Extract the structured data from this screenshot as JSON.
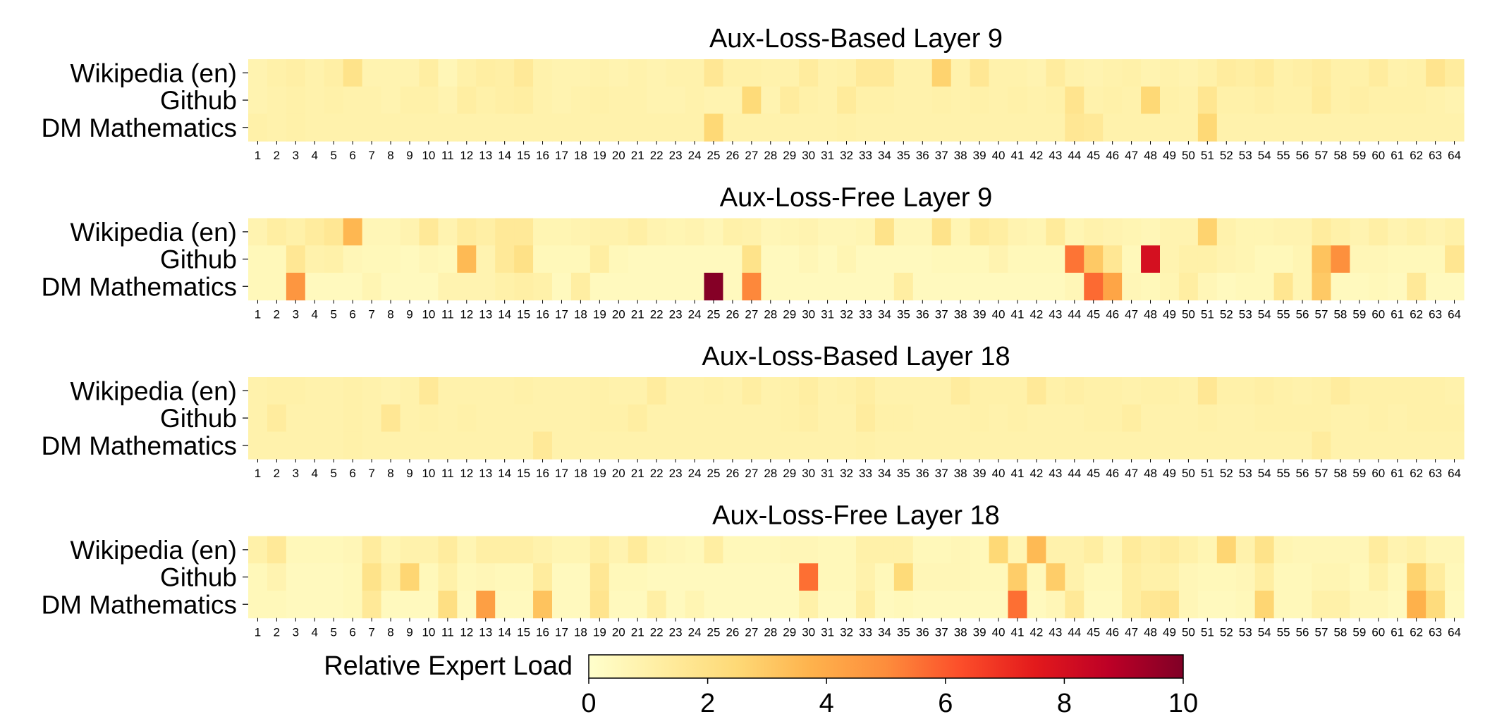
{
  "chart_data": [
    {
      "type": "heatmap",
      "title": "Aux-Loss-Based Layer 9",
      "rows": [
        "Wikipedia (en)",
        "Github",
        "DM Mathematics"
      ],
      "columns": [
        "1",
        "2",
        "3",
        "4",
        "5",
        "6",
        "7",
        "8",
        "9",
        "10",
        "11",
        "12",
        "13",
        "14",
        "15",
        "16",
        "17",
        "18",
        "19",
        "20",
        "21",
        "22",
        "23",
        "24",
        "25",
        "26",
        "27",
        "28",
        "29",
        "30",
        "31",
        "32",
        "33",
        "34",
        "35",
        "36",
        "37",
        "38",
        "39",
        "40",
        "41",
        "42",
        "43",
        "44",
        "45",
        "46",
        "47",
        "48",
        "49",
        "50",
        "51",
        "52",
        "53",
        "54",
        "55",
        "56",
        "57",
        "58",
        "59",
        "60",
        "61",
        "62",
        "63",
        "64"
      ],
      "values": [
        [
          0.8,
          1.0,
          1.1,
          0.9,
          1.1,
          1.9,
          0.8,
          0.8,
          0.8,
          1.2,
          0.6,
          1.0,
          1.2,
          1.1,
          1.5,
          0.9,
          0.8,
          0.8,
          0.9,
          0.8,
          0.9,
          0.8,
          0.9,
          0.9,
          1.6,
          1.0,
          1.0,
          0.9,
          0.9,
          1.3,
          0.9,
          1.0,
          1.5,
          1.5,
          0.9,
          0.9,
          2.7,
          0.9,
          1.6,
          0.9,
          0.9,
          0.8,
          1.3,
          0.9,
          0.8,
          0.9,
          1.0,
          0.8,
          0.9,
          0.8,
          1.0,
          1.3,
          1.2,
          1.4,
          1.0,
          1.1,
          1.3,
          1.0,
          1.0,
          1.3,
          0.9,
          1.0,
          1.8,
          1.3
        ],
        [
          0.8,
          0.9,
          1.0,
          0.9,
          1.0,
          0.9,
          0.9,
          0.8,
          1.0,
          1.0,
          0.8,
          1.2,
          1.0,
          1.1,
          1.2,
          0.9,
          0.8,
          0.9,
          1.0,
          0.9,
          0.9,
          0.8,
          0.8,
          0.9,
          0.8,
          0.8,
          2.4,
          0.8,
          1.3,
          1.0,
          0.9,
          1.4,
          1.0,
          1.0,
          0.9,
          0.9,
          1.0,
          0.9,
          1.0,
          0.9,
          1.0,
          0.9,
          1.0,
          1.8,
          0.9,
          1.0,
          0.9,
          2.5,
          1.0,
          0.9,
          1.7,
          1.0,
          1.0,
          1.1,
          1.0,
          1.0,
          1.4,
          1.0,
          1.1,
          1.0,
          1.0,
          1.0,
          0.9,
          0.8
        ],
        [
          1.0,
          0.9,
          1.0,
          0.9,
          0.9,
          0.9,
          0.9,
          0.9,
          0.9,
          0.9,
          0.9,
          0.9,
          0.9,
          0.9,
          0.9,
          0.9,
          0.9,
          0.9,
          0.9,
          0.9,
          0.9,
          0.9,
          0.9,
          0.9,
          2.5,
          0.9,
          0.9,
          0.9,
          0.9,
          0.9,
          0.9,
          1.0,
          0.9,
          0.9,
          0.9,
          0.9,
          0.9,
          0.9,
          0.9,
          0.9,
          0.9,
          0.9,
          0.9,
          1.6,
          1.5,
          0.9,
          0.9,
          0.9,
          0.9,
          0.9,
          2.5,
          0.9,
          0.9,
          0.9,
          0.9,
          0.9,
          0.9,
          0.9,
          0.9,
          0.9,
          0.9,
          0.9,
          0.9,
          0.9
        ]
      ],
      "colorbar": {
        "label": "Relative Expert Load",
        "range": [
          0,
          10
        ],
        "ticks": [
          "0",
          "2",
          "4",
          "6",
          "8",
          "10"
        ]
      }
    },
    {
      "type": "heatmap",
      "title": "Aux-Loss-Free Layer 9",
      "rows": [
        "Wikipedia (en)",
        "Github",
        "DM Mathematics"
      ],
      "columns": [
        "1",
        "2",
        "3",
        "4",
        "5",
        "6",
        "7",
        "8",
        "9",
        "10",
        "11",
        "12",
        "13",
        "14",
        "15",
        "16",
        "17",
        "18",
        "19",
        "20",
        "21",
        "22",
        "23",
        "24",
        "25",
        "26",
        "27",
        "28",
        "29",
        "30",
        "31",
        "32",
        "33",
        "34",
        "35",
        "36",
        "37",
        "38",
        "39",
        "40",
        "41",
        "42",
        "43",
        "44",
        "45",
        "46",
        "47",
        "48",
        "49",
        "50",
        "51",
        "52",
        "53",
        "54",
        "55",
        "56",
        "57",
        "58",
        "59",
        "60",
        "61",
        "62",
        "63",
        "64"
      ],
      "values": [
        [
          0.8,
          1.2,
          1.0,
          1.3,
          1.6,
          3.6,
          0.6,
          0.6,
          0.8,
          1.5,
          0.8,
          1.3,
          1.1,
          1.5,
          1.5,
          0.7,
          0.7,
          0.8,
          0.9,
          0.9,
          1.1,
          0.8,
          0.7,
          0.8,
          0.6,
          1.0,
          0.9,
          0.6,
          0.7,
          0.8,
          0.6,
          0.6,
          0.7,
          1.9,
          0.6,
          0.6,
          1.9,
          0.7,
          1.4,
          1.2,
          0.8,
          0.7,
          1.4,
          0.7,
          0.9,
          0.8,
          0.7,
          0.6,
          0.8,
          0.8,
          2.7,
          0.9,
          0.7,
          0.7,
          0.8,
          0.8,
          1.3,
          1.0,
          0.8,
          1.1,
          0.8,
          1.0,
          0.8,
          1.0
        ],
        [
          0.5,
          0.5,
          1.6,
          0.9,
          1.0,
          0.6,
          0.5,
          0.5,
          0.4,
          0.6,
          0.5,
          3.5,
          0.8,
          1.5,
          2.0,
          0.5,
          0.5,
          0.5,
          1.2,
          0.5,
          0.4,
          0.4,
          0.4,
          0.4,
          0.4,
          0.4,
          1.9,
          0.4,
          0.4,
          0.6,
          0.4,
          0.7,
          0.4,
          0.4,
          0.4,
          0.4,
          0.5,
          0.5,
          0.5,
          0.8,
          0.5,
          0.5,
          0.5,
          5.5,
          3.0,
          1.6,
          0.5,
          8.0,
          0.8,
          1.0,
          1.0,
          0.8,
          0.7,
          0.5,
          0.5,
          0.7,
          3.2,
          4.9,
          0.6,
          0.6,
          0.5,
          0.5,
          0.5,
          1.7
        ],
        [
          0.5,
          0.5,
          4.7,
          0.4,
          0.4,
          0.4,
          0.7,
          0.4,
          0.4,
          0.4,
          0.8,
          0.8,
          0.8,
          1.0,
          1.1,
          1.0,
          0.4,
          1.2,
          0.4,
          0.4,
          0.4,
          0.4,
          0.4,
          0.4,
          9.9,
          0.4,
          5.1,
          0.4,
          0.4,
          0.4,
          0.4,
          0.4,
          0.4,
          0.4,
          1.2,
          0.4,
          0.4,
          0.4,
          0.4,
          0.4,
          0.4,
          0.4,
          0.4,
          0.6,
          5.7,
          4.2,
          0.6,
          0.5,
          0.7,
          1.2,
          0.6,
          0.4,
          0.5,
          0.5,
          1.7,
          0.7,
          3.0,
          0.4,
          0.4,
          0.5,
          0.4,
          1.5,
          0.4,
          0.4
        ]
      ]
    },
    {
      "type": "heatmap",
      "title": "Aux-Loss-Based Layer 18",
      "rows": [
        "Wikipedia (en)",
        "Github",
        "DM Mathematics"
      ],
      "columns": [
        "1",
        "2",
        "3",
        "4",
        "5",
        "6",
        "7",
        "8",
        "9",
        "10",
        "11",
        "12",
        "13",
        "14",
        "15",
        "16",
        "17",
        "18",
        "19",
        "20",
        "21",
        "22",
        "23",
        "24",
        "25",
        "26",
        "27",
        "28",
        "29",
        "30",
        "31",
        "32",
        "33",
        "34",
        "35",
        "36",
        "37",
        "38",
        "39",
        "40",
        "41",
        "42",
        "43",
        "44",
        "45",
        "46",
        "47",
        "48",
        "49",
        "50",
        "51",
        "52",
        "53",
        "54",
        "55",
        "56",
        "57",
        "58",
        "59",
        "60",
        "61",
        "62",
        "63",
        "64"
      ],
      "values": [
        [
          0.9,
          1.0,
          1.0,
          0.9,
          0.9,
          1.0,
          0.9,
          0.8,
          0.9,
          1.5,
          0.9,
          0.9,
          0.9,
          0.9,
          1.0,
          0.9,
          0.9,
          0.9,
          1.0,
          0.9,
          0.9,
          1.3,
          0.9,
          0.9,
          1.0,
          0.9,
          1.2,
          0.9,
          1.0,
          1.2,
          0.9,
          1.0,
          1.2,
          0.9,
          0.9,
          0.9,
          0.9,
          1.3,
          1.0,
          1.0,
          1.0,
          1.5,
          1.0,
          1.1,
          1.0,
          1.0,
          0.9,
          1.0,
          1.0,
          0.9,
          1.6,
          1.0,
          1.0,
          1.1,
          1.0,
          0.9,
          1.0,
          1.3,
          1.0,
          1.0,
          1.0,
          1.0,
          1.0,
          0.9
        ],
        [
          0.9,
          1.3,
          0.9,
          0.9,
          0.9,
          1.0,
          0.9,
          1.6,
          0.9,
          1.0,
          0.9,
          1.0,
          0.9,
          0.9,
          0.9,
          0.9,
          0.9,
          0.9,
          1.0,
          1.0,
          1.2,
          0.9,
          0.9,
          0.9,
          0.9,
          0.9,
          0.9,
          0.9,
          1.0,
          1.1,
          0.9,
          0.9,
          1.3,
          1.0,
          1.0,
          0.9,
          0.9,
          0.9,
          1.0,
          0.9,
          1.0,
          0.9,
          0.9,
          0.9,
          1.0,
          1.0,
          1.2,
          0.9,
          0.9,
          0.9,
          1.0,
          0.9,
          0.9,
          1.0,
          1.0,
          1.0,
          1.0,
          0.9,
          0.9,
          1.0,
          0.9,
          1.0,
          1.0,
          1.0
        ],
        [
          0.9,
          0.9,
          0.9,
          0.9,
          0.9,
          1.0,
          0.9,
          0.9,
          0.9,
          0.9,
          0.9,
          0.9,
          0.9,
          0.9,
          0.9,
          1.5,
          0.9,
          0.9,
          0.9,
          0.9,
          0.9,
          0.9,
          0.9,
          0.9,
          0.9,
          0.9,
          0.9,
          0.9,
          0.9,
          0.9,
          0.9,
          0.9,
          1.0,
          0.9,
          0.9,
          0.9,
          0.9,
          0.9,
          0.9,
          0.9,
          0.9,
          0.9,
          0.9,
          0.9,
          0.9,
          0.9,
          0.9,
          0.9,
          0.9,
          0.9,
          0.9,
          0.9,
          0.9,
          0.9,
          0.9,
          0.9,
          1.3,
          0.9,
          0.9,
          0.9,
          0.9,
          0.9,
          0.9,
          0.9
        ]
      ]
    },
    {
      "type": "heatmap",
      "title": "Aux-Loss-Free Layer 18",
      "rows": [
        "Wikipedia (en)",
        "Github",
        "DM Mathematics"
      ],
      "columns": [
        "1",
        "2",
        "3",
        "4",
        "5",
        "6",
        "7",
        "8",
        "9",
        "10",
        "11",
        "12",
        "13",
        "14",
        "15",
        "16",
        "17",
        "18",
        "19",
        "20",
        "21",
        "22",
        "23",
        "24",
        "25",
        "26",
        "27",
        "28",
        "29",
        "30",
        "31",
        "32",
        "33",
        "34",
        "35",
        "36",
        "37",
        "38",
        "39",
        "40",
        "41",
        "42",
        "43",
        "44",
        "45",
        "46",
        "47",
        "48",
        "49",
        "50",
        "51",
        "52",
        "53",
        "54",
        "55",
        "56",
        "57",
        "58",
        "59",
        "60",
        "61",
        "62",
        "63",
        "64"
      ],
      "values": [
        [
          1.0,
          1.5,
          0.5,
          0.5,
          0.5,
          0.6,
          1.3,
          0.7,
          0.9,
          0.9,
          1.3,
          0.7,
          1.1,
          1.1,
          1.1,
          0.9,
          0.7,
          0.7,
          1.2,
          0.8,
          1.4,
          0.7,
          0.6,
          0.5,
          1.2,
          0.5,
          0.5,
          0.5,
          0.6,
          0.6,
          0.5,
          0.5,
          1.0,
          1.0,
          1.0,
          0.5,
          0.5,
          0.6,
          0.5,
          2.5,
          0.7,
          3.5,
          0.9,
          0.9,
          1.2,
          0.6,
          1.4,
          1.1,
          1.3,
          1.0,
          0.7,
          2.6,
          0.9,
          1.9,
          0.7,
          0.6,
          0.6,
          0.6,
          0.6,
          1.3,
          0.8,
          1.0,
          0.6,
          0.6
        ],
        [
          0.5,
          0.8,
          0.4,
          0.4,
          0.4,
          0.5,
          1.9,
          1.0,
          2.6,
          0.5,
          1.0,
          0.5,
          0.6,
          0.5,
          0.5,
          1.3,
          0.4,
          0.4,
          1.6,
          0.5,
          0.5,
          0.4,
          0.4,
          0.4,
          0.4,
          0.4,
          0.4,
          0.4,
          0.4,
          5.6,
          0.5,
          0.5,
          0.9,
          0.5,
          2.4,
          0.6,
          0.6,
          0.6,
          0.5,
          0.5,
          2.9,
          0.5,
          2.9,
          0.9,
          0.5,
          0.5,
          1.2,
          1.0,
          1.0,
          0.6,
          0.5,
          0.5,
          0.6,
          1.2,
          0.5,
          0.5,
          0.7,
          0.7,
          0.5,
          1.0,
          0.5,
          2.7,
          1.3,
          0.5
        ],
        [
          0.5,
          0.5,
          0.4,
          0.4,
          0.4,
          0.5,
          1.5,
          0.4,
          0.4,
          0.4,
          2.1,
          0.4,
          4.4,
          0.4,
          0.4,
          3.2,
          0.4,
          0.4,
          1.8,
          0.4,
          0.4,
          1.1,
          0.4,
          0.7,
          0.4,
          0.4,
          0.4,
          0.4,
          0.4,
          1.0,
          0.4,
          0.4,
          1.2,
          0.4,
          0.5,
          0.4,
          0.4,
          0.4,
          0.4,
          0.4,
          5.6,
          0.4,
          0.6,
          1.5,
          0.4,
          0.4,
          1.2,
          1.6,
          1.8,
          0.6,
          0.4,
          0.4,
          0.5,
          2.6,
          0.5,
          0.5,
          1.0,
          1.0,
          0.6,
          0.6,
          0.4,
          3.8,
          2.3,
          0.4
        ]
      ]
    }
  ]
}
